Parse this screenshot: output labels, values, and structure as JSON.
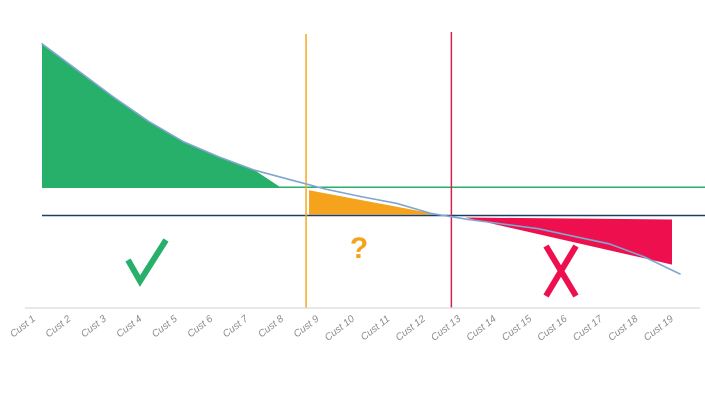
{
  "chart_data": {
    "type": "line",
    "categories": [
      "Cust 1",
      "Cust 2",
      "Cust 3",
      "Cust 4",
      "Cust 5",
      "Cust 6",
      "Cust 7",
      "Cust 8",
      "Cust 9",
      "Cust 10",
      "Cust 11",
      "Cust 12",
      "Cust 13",
      "Cust 14",
      "Cust 15",
      "Cust 16",
      "Cust 17",
      "Cust 18",
      "Cust 19"
    ],
    "series": [
      {
        "values": [
          100,
          86,
          72,
          59,
          48,
          40,
          33,
          28,
          23,
          19,
          15.5,
          10,
          7,
          4.5,
          2,
          -2,
          -6,
          -13,
          -22
        ],
        "color": "#7fa7cf"
      }
    ],
    "ylim": [
      -40,
      102
    ],
    "upper_threshold": 24,
    "lower_threshold": 9,
    "vertical_markers": [
      {
        "x_index": 7.45,
        "color": "#f5a623"
      },
      {
        "x_index": 11.55,
        "color": "#d4234b"
      }
    ],
    "zones": [
      {
        "name": "accept",
        "fill": "#27b06a",
        "symbol": "checkmark"
      },
      {
        "name": "maybe",
        "fill": "#f5a31c",
        "symbol": "?"
      },
      {
        "name": "reject",
        "fill": "#ee0f4f",
        "symbol": "X"
      }
    ],
    "grid": false,
    "legend": "none",
    "title": "",
    "xlabel": "",
    "ylabel": ""
  }
}
